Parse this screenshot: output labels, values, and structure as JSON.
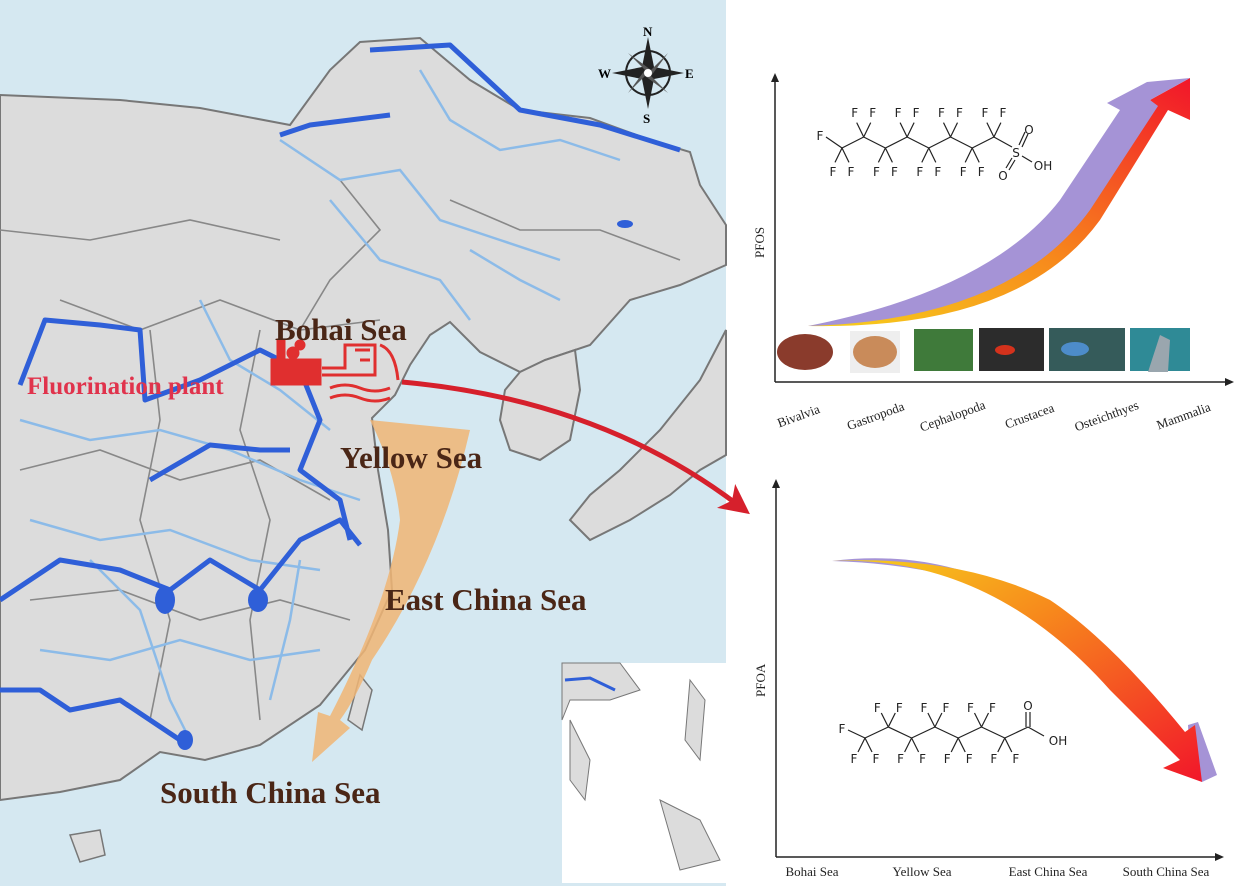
{
  "map": {
    "seas": [
      "Bohai Sea",
      "Yellow Sea",
      "East China Sea",
      "South China Sea"
    ],
    "plant_label": "Fluorination plant",
    "compass": {
      "n": "N",
      "s": "S",
      "e": "E",
      "w": "W"
    },
    "colors": {
      "sea": "#d5e8f1",
      "land": "#dcdcdc",
      "border": "#777777",
      "major_river": "#2f5fd8",
      "minor_river": "#8cbbe8",
      "plant": "#e02f2f",
      "label": "#4a2616",
      "plant_label": "#e0334c",
      "flow": "#f0b574"
    }
  },
  "pfos_panel": {
    "ylabel": "PFOS",
    "categories": [
      "Bivalvia",
      "Gastropoda",
      "Cephalopoda",
      "Crustacea",
      "Osteichthyes",
      "Mammalia"
    ],
    "trend": "increasing",
    "structure": {
      "chain": [
        "F",
        "F",
        "F",
        "F",
        "F",
        "F",
        "F",
        "F",
        "F",
        "F",
        "F",
        "F",
        "F",
        "F",
        "F",
        "F",
        "F"
      ],
      "head": {
        "s": "S",
        "o": "O",
        "oh": "OH"
      }
    }
  },
  "pfoa_panel": {
    "ylabel": "PFOA",
    "categories": [
      "Bohai Sea",
      "Yellow Sea",
      "East China Sea",
      "South China Sea"
    ],
    "trend": "decreasing",
    "structure": {
      "f": "F",
      "o": "O",
      "oh": "OH"
    }
  },
  "arrow_colors": {
    "purple": "#a593d6",
    "red": "#f2162a",
    "orange": "#f78a1c",
    "yellow": "#f7d21c"
  }
}
